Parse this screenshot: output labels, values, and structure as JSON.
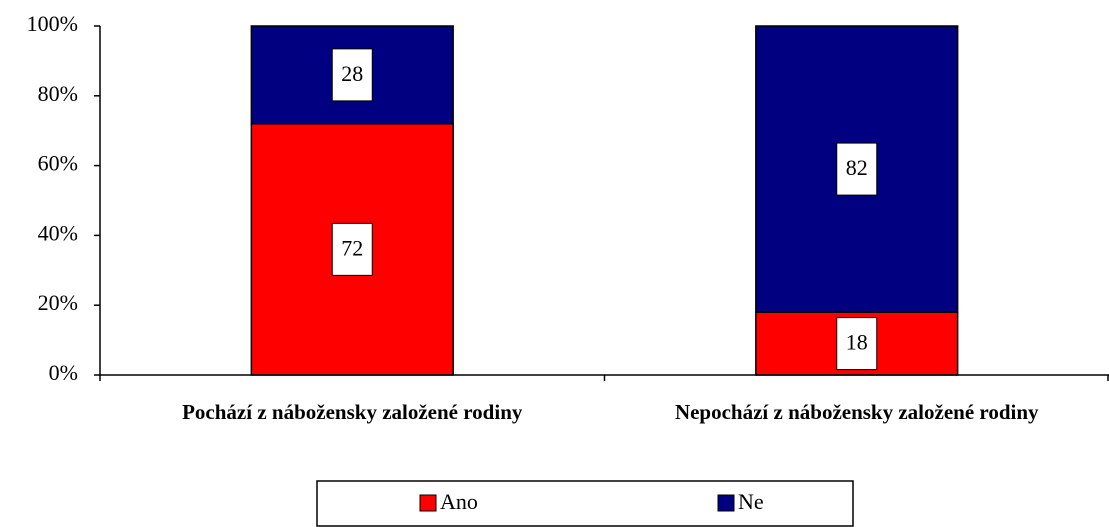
{
  "chart_data": {
    "type": "stacked_bar",
    "categories": [
      "Pochází z nábožensky založené rodiny",
      "Nepochází z nábožensky založené rodiny"
    ],
    "series": [
      {
        "name": "Ano",
        "color": "#ff0000",
        "values": [
          72,
          18
        ]
      },
      {
        "name": "Ne",
        "color": "#000080",
        "values": [
          28,
          82
        ]
      }
    ],
    "ylim": [
      0,
      100
    ],
    "yticks": [
      {
        "value": 0,
        "label": "0%"
      },
      {
        "value": 20,
        "label": "20%"
      },
      {
        "value": 40,
        "label": "40%"
      },
      {
        "value": 60,
        "label": "60%"
      },
      {
        "value": 80,
        "label": "80%"
      },
      {
        "value": 100,
        "label": "100%"
      }
    ],
    "legend": "bottom"
  }
}
